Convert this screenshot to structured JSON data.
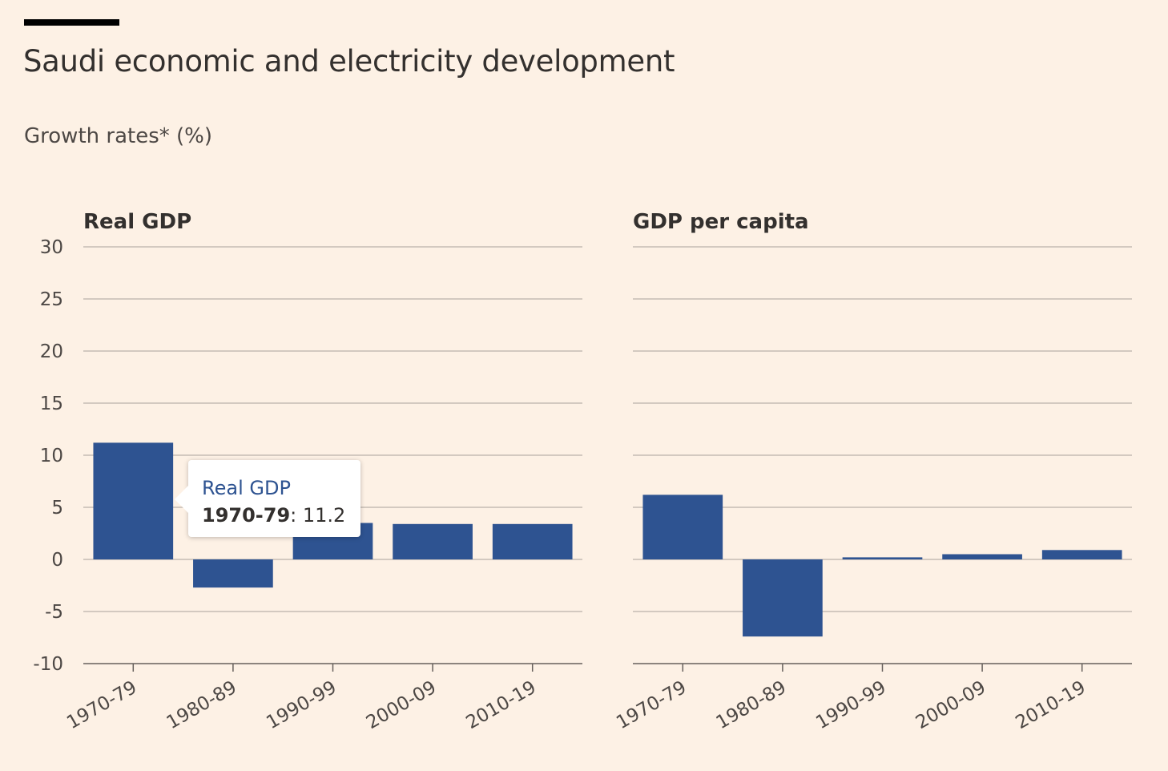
{
  "header": {
    "title": "Saudi economic and electricity development",
    "subtitle": "Growth rates* (%)"
  },
  "colors": {
    "background": "#fdf1e5",
    "bar": "#2e5391",
    "grid": "#c5bcb3",
    "axis": "#66605c"
  },
  "tooltip": {
    "series": "Real GDP",
    "category": "1970-79",
    "value": "11.2"
  },
  "chart_data": [
    {
      "type": "bar",
      "title": "Real GDP",
      "categories": [
        "1970-79",
        "1980-89",
        "1990-99",
        "2000-09",
        "2010-19"
      ],
      "values": [
        11.2,
        -2.7,
        3.5,
        3.4,
        3.4
      ],
      "ylim": [
        -10,
        30
      ],
      "yticks": [
        30,
        25,
        20,
        15,
        10,
        5,
        0,
        -5,
        -10
      ],
      "grid": true
    },
    {
      "type": "bar",
      "title": "GDP per capita",
      "categories": [
        "1970-79",
        "1980-89",
        "1990-99",
        "2000-09",
        "2010-19"
      ],
      "values": [
        6.2,
        -7.4,
        0.2,
        0.5,
        0.9
      ],
      "ylim": [
        -10,
        30
      ],
      "grid": true
    }
  ]
}
